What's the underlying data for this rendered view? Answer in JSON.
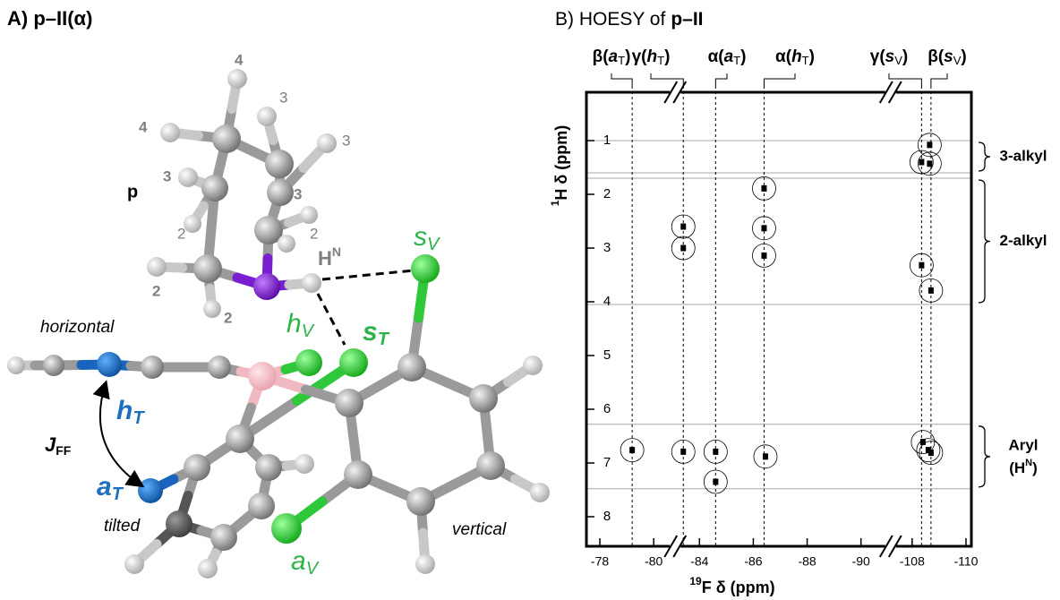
{
  "panel_a": {
    "title": "A) p–II(α)",
    "ring_labels": [
      "4",
      "4",
      "3",
      "3",
      "3",
      "3",
      "2",
      "2",
      "2",
      "2"
    ],
    "p_label": "p",
    "hn": {
      "text": "H",
      "sup": "N"
    },
    "sV": {
      "text": "s",
      "sub": "V"
    },
    "hV": {
      "text": "h",
      "sub": "V"
    },
    "sT": {
      "text": "s",
      "sub": "T"
    },
    "hT": {
      "text": "h",
      "sub": "T"
    },
    "aT": {
      "text": "a",
      "sub": "T"
    },
    "aV": {
      "text": "a",
      "sub": "V"
    },
    "jff": {
      "text": "J",
      "sub": "FF"
    },
    "horizontal": "horizontal",
    "tilted": "tilted",
    "vertical": "vertical"
  },
  "chart_data": {
    "type": "scatter",
    "title": "B) HOESY of",
    "title_bold": "p–II",
    "x_label": {
      "sup": "19",
      "text": "F δ (ppm)"
    },
    "y_label": {
      "sup": "1",
      "text": "H δ (ppm)"
    },
    "xlim": [
      -77.5,
      -110.2
    ],
    "x_breaks": [
      [
        -80.8,
        -83.1
      ],
      [
        -91.1,
        -107.2
      ]
    ],
    "xticks": [
      -78,
      -80,
      -84,
      -86,
      -88,
      -90,
      -108,
      -110
    ],
    "ylim": [
      0.1,
      8.55
    ],
    "yticks": [
      1,
      2,
      3,
      4,
      5,
      6,
      7,
      8
    ],
    "reference_lines": [
      {
        "x": -79.2,
        "label": [
          "β(",
          "a",
          "T",
          ")"
        ]
      },
      {
        "x": -83.4,
        "label": [
          "γ(",
          "h",
          "T",
          ")"
        ]
      },
      {
        "x": -84.6,
        "label": [
          "α(",
          "a",
          "T",
          ")"
        ]
      },
      {
        "x": -86.4,
        "label": [
          "α(",
          "h",
          "T",
          ")"
        ]
      },
      {
        "x": -108.35,
        "label": [
          "γ(",
          "s",
          "V",
          ")"
        ]
      },
      {
        "x": -108.7,
        "label": [
          "β(",
          "s",
          "V",
          ")"
        ]
      }
    ],
    "regions": [
      {
        "label": "3-alkyl",
        "range": [
          1.0,
          1.6
        ]
      },
      {
        "label": "2-alkyl",
        "range": [
          1.7,
          4.05
        ]
      },
      {
        "label": "Aryl",
        "label2": "(H",
        "label2_sup": "N",
        "label2_end": ")",
        "range": [
          6.28,
          7.48
        ]
      }
    ],
    "peaks": {
      "x": [
        -108.65,
        -108.35,
        -108.65,
        -86.4,
        -83.4,
        -83.4,
        -86.4,
        -86.4,
        -108.35,
        -108.7,
        -108.4,
        -108.6,
        -108.7,
        -79.2,
        -83.4,
        -84.6,
        -84.6,
        -86.45
      ],
      "y": [
        1.08,
        1.4,
        1.43,
        1.89,
        2.6,
        3.0,
        2.63,
        3.14,
        3.32,
        3.79,
        6.61,
        6.76,
        6.81,
        6.76,
        6.79,
        6.79,
        7.35,
        6.88
      ]
    }
  }
}
